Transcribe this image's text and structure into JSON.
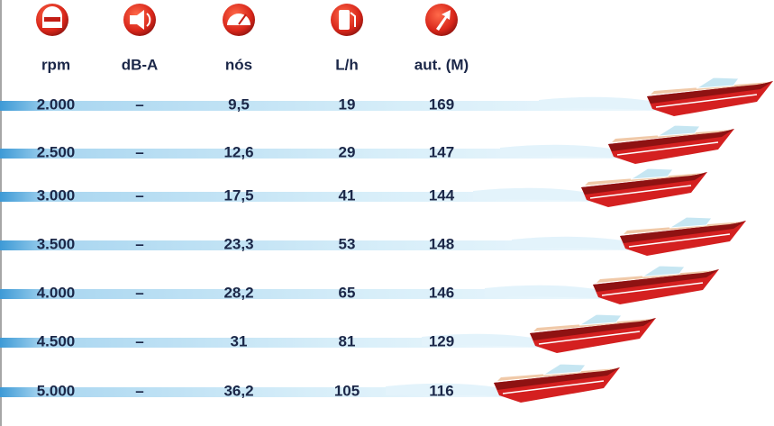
{
  "table": {
    "headers": [
      "rpm",
      "dB-A",
      "nós",
      "L/h",
      "aut. (M)"
    ],
    "rows": [
      [
        "2.000",
        "–",
        "9,5",
        "19",
        "169"
      ],
      [
        "2.500",
        "–",
        "12,6",
        "29",
        "147"
      ],
      [
        "3.000",
        "–",
        "17,5",
        "41",
        "144"
      ],
      [
        "3.500",
        "–",
        "23,3",
        "53",
        "148"
      ],
      [
        "4.000",
        "–",
        "28,2",
        "65",
        "146"
      ],
      [
        "4.500",
        "–",
        "31",
        "81",
        "129"
      ],
      [
        "5.000",
        "–",
        "36,2",
        "105",
        "116"
      ]
    ]
  }
}
